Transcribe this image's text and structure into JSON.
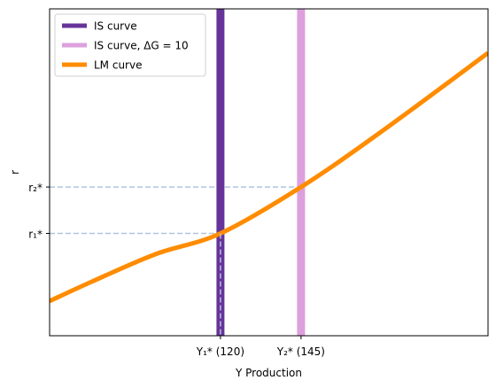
{
  "chart_data": {
    "type": "line",
    "xlabel": "Y Production",
    "ylabel": "r",
    "xlim": [
      67,
      203
    ],
    "ylim": [
      0,
      10
    ],
    "grid": false,
    "legend_position": "top-left",
    "series": [
      {
        "name": "IS curve",
        "kind": "vertical",
        "x": 120,
        "color": "#663399"
      },
      {
        "name": "IS curve, ΔG = 10",
        "kind": "vertical",
        "x": 145,
        "color": "#DDA0DD"
      },
      {
        "name": "LM curve",
        "kind": "curve",
        "color": "#FF8C00",
        "x": [
          67,
          80,
          100,
          120,
          145,
          170,
          203
        ],
        "y": [
          1.06,
          1.65,
          2.5,
          3.13,
          4.55,
          6.25,
          8.65
        ]
      }
    ],
    "x_ticks": [
      {
        "value": 120,
        "label": "Y₁* (120)"
      },
      {
        "value": 145,
        "label": "Y₂* (145)"
      }
    ],
    "y_ticks": [
      {
        "value": 3.13,
        "label": "r₁*"
      },
      {
        "value": 4.55,
        "label": "r₂*"
      }
    ],
    "equilibria": [
      {
        "x": 120,
        "y": 3.13
      },
      {
        "x": 145,
        "y": 4.55
      }
    ],
    "guide_line_color": "#B0C4DE"
  }
}
